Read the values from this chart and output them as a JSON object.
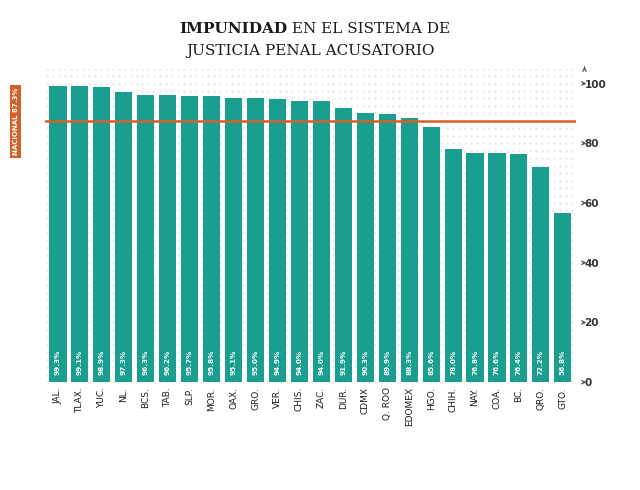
{
  "categories": [
    "JAL.",
    "TLAX.",
    "YUC.",
    "NL.",
    "BCS.",
    "TAB.",
    "SLP.",
    "MOR.",
    "OAX.",
    "GRO.",
    "VER.",
    "CHIS.",
    "ZAC.",
    "DUR.",
    "CDMX",
    "Q. ROO",
    "EDOMEX",
    "HGO.",
    "CHIH.",
    "NAY.",
    "COA.",
    "BC.",
    "QRO.",
    "GTO."
  ],
  "values": [
    99.3,
    99.1,
    98.9,
    97.3,
    96.3,
    96.2,
    95.7,
    95.8,
    95.1,
    95.0,
    94.9,
    94.0,
    94.0,
    91.9,
    90.3,
    89.9,
    88.3,
    85.6,
    78.0,
    76.8,
    76.6,
    76.4,
    72.2,
    56.8
  ],
  "bar_color": "#1a9e8f",
  "national_line": 87.3,
  "national_label": "NACIONAL 87.3%",
  "national_line_color": "#d4602a",
  "national_label_bg": "#d4602a",
  "national_label_color": "#ffffff",
  "title_bold": "IMPUNIDAD",
  "title_normal": " EN EL SISTEMA DE",
  "title_line2": "JUSTICIA PENAL ACUSATORIO",
  "title_color": "#1a1a1a",
  "ylim": [
    0,
    105
  ],
  "yticks": [
    0,
    20,
    40,
    60,
    80,
    100
  ],
  "value_fontsize": 5.2,
  "label_fontsize": 6.5,
  "background_color": "#ffffff",
  "dot_grid_color": "#bbbbbb"
}
